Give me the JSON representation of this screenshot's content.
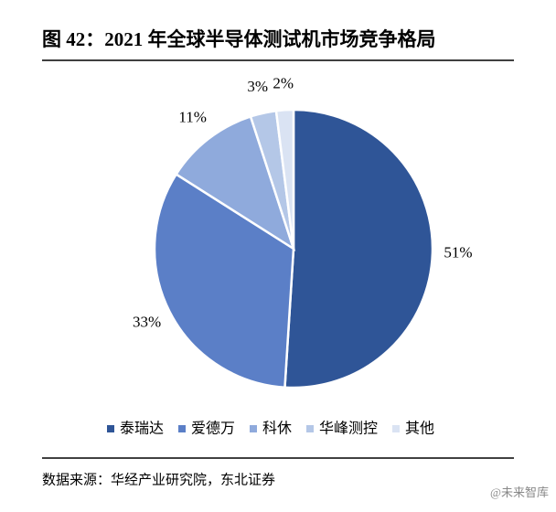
{
  "chart_data": {
    "type": "pie",
    "title": "图 42：2021 年全球半导体测试机市场竞争格局",
    "categories": [
      "泰瑞达",
      "爱德万",
      "科休",
      "华峰测控",
      "其他"
    ],
    "values": [
      51,
      33,
      11,
      3,
      2
    ],
    "value_labels": [
      "51%",
      "33%",
      "11%",
      "3%",
      "2%"
    ],
    "colors": [
      "#2f5597",
      "#5b7fc7",
      "#8faadc",
      "#b4c7e7",
      "#dae3f3"
    ],
    "source": "数据来源：华经产业研究院，东北证券",
    "watermark": "@未来智库"
  }
}
